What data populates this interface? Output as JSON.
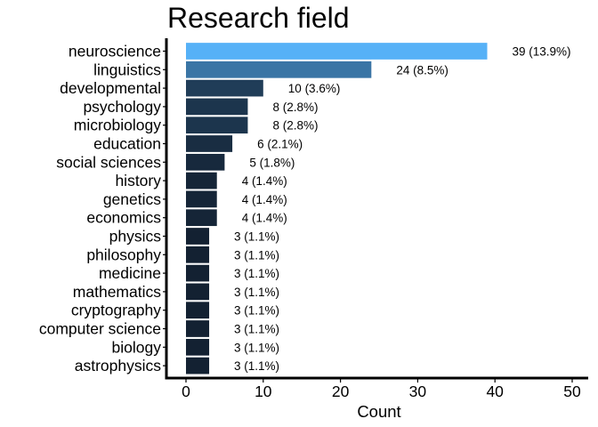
{
  "chart_data": {
    "type": "bar",
    "orientation": "horizontal",
    "title": "Research field",
    "xlabel": "Count",
    "ylabel": "",
    "xlim": [
      0,
      50
    ],
    "x_ticks": [
      0,
      10,
      20,
      30,
      40,
      50
    ],
    "x_tick_labels": [
      "0",
      "10",
      "20",
      "30",
      "40",
      "50"
    ],
    "grid": false,
    "legend": "none",
    "color_low": "#132132",
    "color_high": "#56b1f7",
    "categories": [
      "neuroscience",
      "linguistics",
      "developmental",
      "psychology",
      "microbiology",
      "education",
      "social sciences",
      "history",
      "genetics",
      "economics",
      "physics",
      "philosophy",
      "medicine",
      "mathematics",
      "cryptography",
      "computer science",
      "biology",
      "astrophysics"
    ],
    "values": [
      39,
      24,
      10,
      8,
      8,
      6,
      5,
      4,
      4,
      4,
      3,
      3,
      3,
      3,
      3,
      3,
      3,
      3
    ],
    "data_labels": [
      "39 (13.9%)",
      "24 (8.5%)",
      "10 (3.6%)",
      "8 (2.8%)",
      "8 (2.8%)",
      "6 (2.1%)",
      "5 (1.8%)",
      "4 (1.4%)",
      "4 (1.4%)",
      "4 (1.4%)",
      "3 (1.1%)",
      "3 (1.1%)",
      "3 (1.1%)",
      "3 (1.1%)",
      "3 (1.1%)",
      "3 (1.1%)",
      "3 (1.1%)",
      "3 (1.1%)"
    ]
  }
}
